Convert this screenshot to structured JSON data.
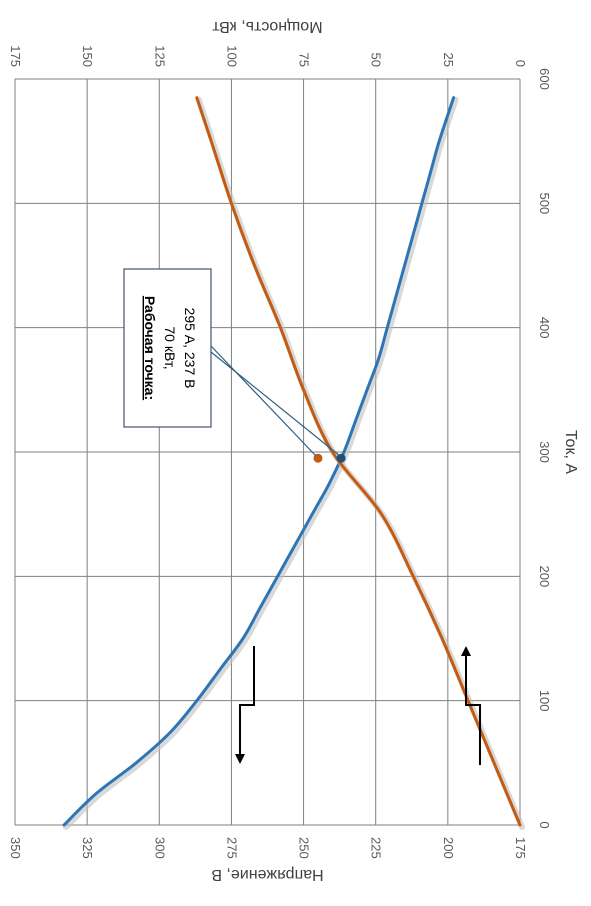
{
  "chart_data": {
    "type": "line",
    "orientation": "rotated-90-clockwise",
    "xlabel": "Ток, А",
    "ylabel_left": "Напряжение, В",
    "ylabel_right": "Мощность, кВт",
    "x_ticks": [
      "0",
      "100",
      "200",
      "300",
      "400",
      "500",
      "600"
    ],
    "y_left_ticks": [
      "175",
      "200",
      "225",
      "250",
      "275",
      "300",
      "325",
      "350"
    ],
    "y_right_ticks": [
      "0",
      "25",
      "50",
      "75",
      "100",
      "125",
      "150",
      "175"
    ],
    "xlim": [
      0,
      600
    ],
    "y_left_lim": [
      175,
      350
    ],
    "y_right_lim": [
      0,
      175
    ],
    "grid": true,
    "series": [
      {
        "axis": "left",
        "color": "#2e75b6",
        "points": [
          [
            0,
            333
          ],
          [
            25,
            322
          ],
          [
            50,
            308
          ],
          [
            75,
            296
          ],
          [
            100,
            287
          ],
          [
            125,
            279
          ],
          [
            150,
            271
          ],
          [
            175,
            265
          ],
          [
            200,
            259
          ],
          [
            225,
            253
          ],
          [
            250,
            247
          ],
          [
            275,
            241
          ],
          [
            300,
            236
          ],
          [
            325,
            232
          ],
          [
            350,
            228
          ],
          [
            375,
            224
          ],
          [
            400,
            221
          ],
          [
            425,
            218
          ],
          [
            450,
            215
          ],
          [
            475,
            212
          ],
          [
            500,
            209
          ],
          [
            525,
            206
          ],
          [
            550,
            203
          ],
          [
            585,
            198
          ]
        ]
      },
      {
        "axis": "right",
        "color": "#c55a11",
        "points": [
          [
            0,
            0
          ],
          [
            50,
            9
          ],
          [
            100,
            18
          ],
          [
            150,
            27
          ],
          [
            200,
            37
          ],
          [
            250,
            48
          ],
          [
            300,
            65
          ],
          [
            350,
            75
          ],
          [
            400,
            83
          ],
          [
            450,
            92
          ],
          [
            500,
            100
          ],
          [
            550,
            107
          ],
          [
            585,
            112
          ]
        ]
      }
    ],
    "operating_point": {
      "x": 295,
      "voltage": 237,
      "power": 70
    },
    "annotation": {
      "header": "Рабочая точка:",
      "line1": "70 кВт,",
      "line2": "295 А, 237 В"
    }
  }
}
